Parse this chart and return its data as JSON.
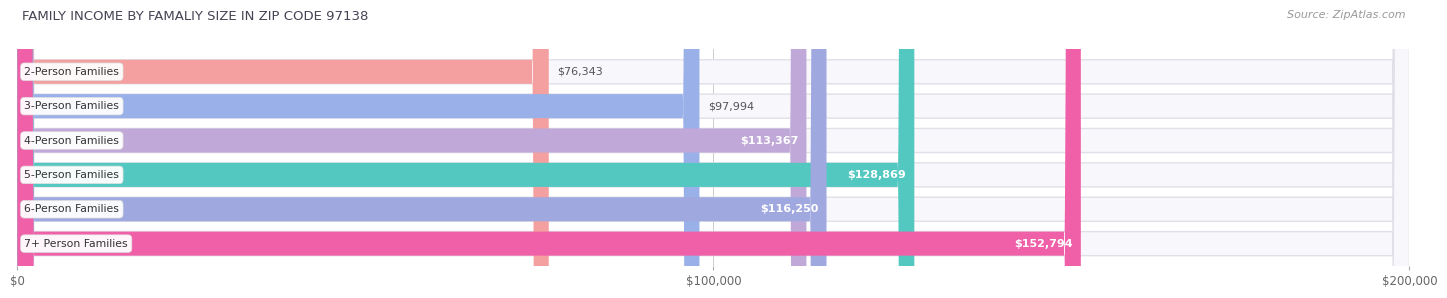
{
  "title": "FAMILY INCOME BY FAMALIY SIZE IN ZIP CODE 97138",
  "source": "Source: ZipAtlas.com",
  "categories": [
    "2-Person Families",
    "3-Person Families",
    "4-Person Families",
    "5-Person Families",
    "6-Person Families",
    "7+ Person Families"
  ],
  "values": [
    76343,
    97994,
    113367,
    128869,
    116250,
    152794
  ],
  "labels": [
    "$76,343",
    "$97,994",
    "$113,367",
    "$128,869",
    "$116,250",
    "$152,794"
  ],
  "bar_colors": [
    "#f4a0a0",
    "#9ab0e8",
    "#c0a8d8",
    "#52c8c0",
    "#a0a8e0",
    "#f060a8"
  ],
  "bg_color": "#eeeeee",
  "bar_bg_color": "#f8f8fc",
  "xlim": [
    0,
    200000
  ],
  "xticks": [
    0,
    100000,
    200000
  ],
  "xtick_labels": [
    "$0",
    "$100,000",
    "$200,000"
  ],
  "background_color": "#ffffff",
  "bar_height": 0.7,
  "title_color": "#444455",
  "source_color": "#999999",
  "label_inside_color": "#ffffff",
  "label_outside_color": "#555555",
  "label_inside_threshold": 110000,
  "row_bg_color": "#f0f0f8"
}
